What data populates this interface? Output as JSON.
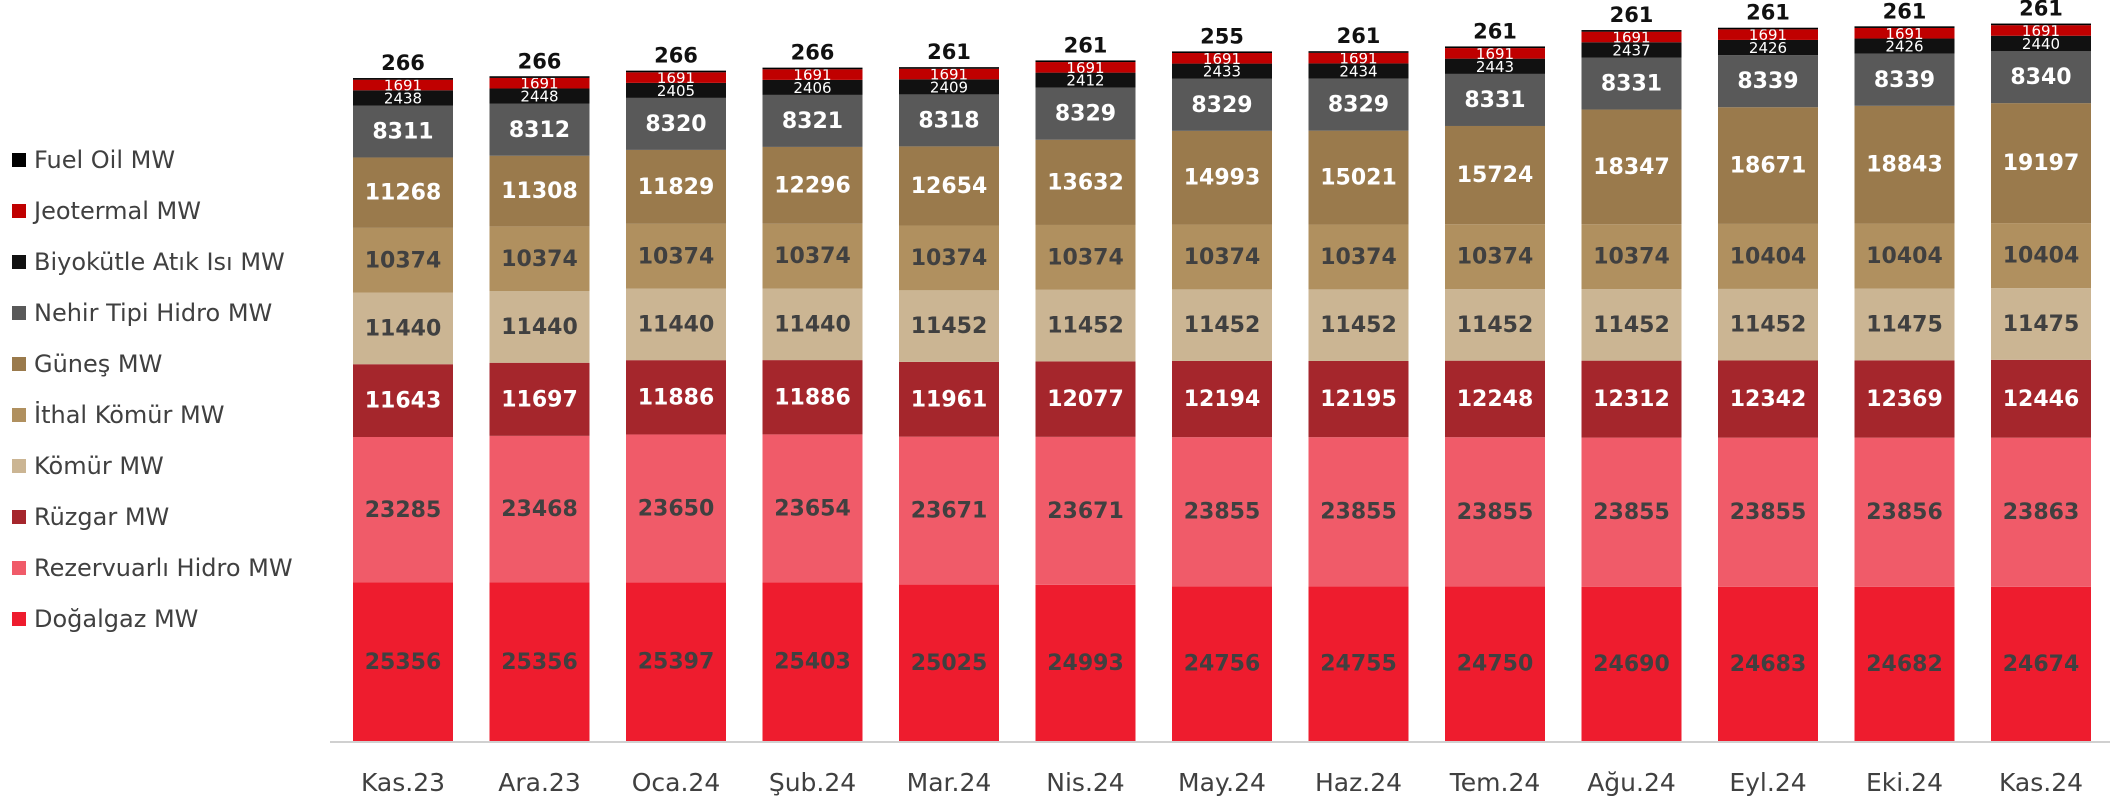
{
  "chart_data": {
    "type": "stacked_bar",
    "categories": [
      "Kas.23",
      "Ara.23",
      "Oca.24",
      "Şub.24",
      "Mar.24",
      "Nis.24",
      "May.24",
      "Haz.24",
      "Tem.24",
      "Ağu.24",
      "Eyl.24",
      "Eki.24",
      "Kas.24"
    ],
    "series": [
      {
        "name": "Doğalgaz MW",
        "color": "#ee1c2e",
        "values": [
          25356,
          25356,
          25397,
          25403,
          25025,
          24993,
          24756,
          24755,
          24750,
          24690,
          24683,
          24682,
          24674
        ]
      },
      {
        "name": "Rezervuarlı Hidro MW",
        "color": "#f05b69",
        "values": [
          23285,
          23468,
          23650,
          23654,
          23671,
          23671,
          23855,
          23855,
          23855,
          23855,
          23855,
          23856,
          23863
        ]
      },
      {
        "name": "Rüzgar MW",
        "color": "#a5262c",
        "values": [
          11643,
          11697,
          11886,
          11886,
          11961,
          12077,
          12194,
          12195,
          12248,
          12312,
          12342,
          12369,
          12446
        ]
      },
      {
        "name": "Kömür MW",
        "color": "#cbb593",
        "values": [
          11440,
          11440,
          11440,
          11440,
          11452,
          11452,
          11452,
          11452,
          11452,
          11452,
          11452,
          11475,
          11475
        ]
      },
      {
        "name": "İthal Kömür MW",
        "color": "#b0905f",
        "values": [
          10374,
          10374,
          10374,
          10374,
          10374,
          10374,
          10374,
          10374,
          10374,
          10374,
          10404,
          10404,
          10404
        ]
      },
      {
        "name": "Güneş MW",
        "color": "#9a7a4c",
        "values": [
          11268,
          11308,
          11829,
          12296,
          12654,
          13632,
          14993,
          15021,
          15724,
          18347,
          18671,
          18843,
          19197
        ]
      },
      {
        "name": "Nehir Tipi Hidro MW",
        "color": "#595959",
        "values": [
          8311,
          8312,
          8320,
          8321,
          8318,
          8329,
          8329,
          8329,
          8331,
          8331,
          8339,
          8339,
          8340
        ]
      },
      {
        "name": "Biyokütle Atık Isı MW",
        "color": "#111111",
        "values": [
          2438,
          2448,
          2405,
          2406,
          2409,
          2412,
          2433,
          2434,
          2443,
          2437,
          2426,
          2426,
          2440
        ]
      },
      {
        "name": "Jeotermal MW",
        "color": "#c00000",
        "values": [
          1691,
          1691,
          1691,
          1691,
          1691,
          1691,
          1691,
          1691,
          1691,
          1691,
          1691,
          1691,
          1691
        ]
      },
      {
        "name": "Fuel Oil MW",
        "color": "#000000",
        "values": [
          266,
          266,
          266,
          266,
          261,
          261,
          255,
          261,
          261,
          261,
          261,
          261,
          261
        ]
      }
    ]
  }
}
